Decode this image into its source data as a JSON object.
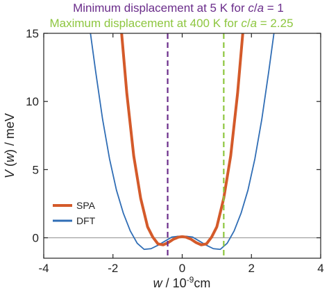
{
  "chart_data": {
    "type": "line",
    "xlabel_prefix": "w",
    "xlabel_sep": " / ",
    "xlabel_unit_base": "10",
    "xlabel_unit_exp": "-9",
    "xlabel_unit_suffix": "cm",
    "ylabel_func": "V",
    "ylabel_arg": "w",
    "ylabel_unit": " / meV",
    "xlim": [
      -4,
      4
    ],
    "ylim": [
      -1.5,
      15
    ],
    "xticks": [
      -4,
      -2,
      0,
      2,
      4
    ],
    "yticks": [
      0,
      5,
      10,
      15
    ],
    "xtick_labels": [
      "-4",
      "-2",
      "0",
      "2",
      "4"
    ],
    "ytick_labels": [
      "0",
      "5",
      "10",
      "15"
    ],
    "grid": false,
    "legend_position": "lower-left",
    "series": [
      {
        "name": "SPA",
        "color": "#d45a2a",
        "x": [
          -1.75,
          -1.6,
          -1.4,
          -1.2,
          -1.0,
          -0.85,
          -0.7,
          -0.55,
          -0.4,
          -0.25,
          -0.1,
          0,
          0.1,
          0.25,
          0.4,
          0.55,
          0.7,
          0.85,
          1.0,
          1.2,
          1.4,
          1.6,
          1.75
        ],
        "y": [
          15.0,
          10.6,
          6.0,
          2.9,
          0.8,
          0.05,
          -0.45,
          -0.52,
          -0.35,
          -0.1,
          0.05,
          0.08,
          0.05,
          -0.1,
          -0.35,
          -0.52,
          -0.45,
          0.05,
          0.8,
          2.9,
          6.0,
          10.6,
          15.0
        ]
      },
      {
        "name": "DFT",
        "color": "#2f6db5",
        "x": [
          -2.65,
          -2.5,
          -2.3,
          -2.1,
          -1.9,
          -1.7,
          -1.5,
          -1.3,
          -1.1,
          -0.9,
          -0.7,
          -0.5,
          -0.3,
          -0.15,
          0,
          0.15,
          0.3,
          0.5,
          0.7,
          0.9,
          1.1,
          1.3,
          1.5,
          1.7,
          1.9,
          2.1,
          2.3,
          2.5,
          2.65
        ],
        "y": [
          15.0,
          12.2,
          8.7,
          5.8,
          3.5,
          1.8,
          0.5,
          -0.4,
          -0.85,
          -0.8,
          -0.55,
          -0.25,
          0.05,
          0.1,
          0.12,
          0.1,
          0.05,
          -0.25,
          -0.55,
          -0.8,
          -0.85,
          -0.4,
          0.5,
          1.8,
          3.5,
          5.8,
          8.7,
          12.2,
          15.0
        ]
      }
    ],
    "vlines": [
      {
        "x": -0.42,
        "color": "#6a2c8a"
      },
      {
        "x": 1.2,
        "color": "#8dc63f"
      }
    ],
    "hline": {
      "y": 0,
      "color": "#9a9a9a"
    }
  },
  "annotations": [
    {
      "color": "#6a2c8a",
      "text_before": "Minimum displacement at 5 K for ",
      "italic_a": "c",
      "slash": "/",
      "italic_b": "a",
      "text_after": " = 1"
    },
    {
      "color": "#8dc63f",
      "text_before": "Maximum displacement at 400 K for ",
      "italic_a": "c",
      "slash": "/",
      "italic_b": "a",
      "text_after": " = 2.25"
    }
  ]
}
